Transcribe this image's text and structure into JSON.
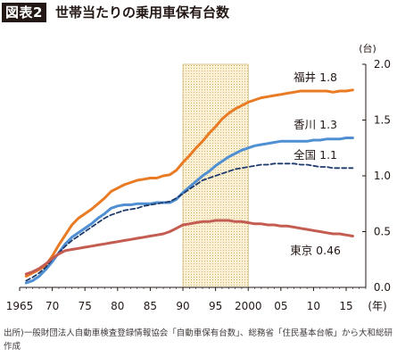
{
  "figure": {
    "badge": "図表2",
    "title": "世帯当たりの乗用車保有台数"
  },
  "source_note": "出所)一般財団法人自動車検査登録情報協会「自動車保有台数」、総務省「住民基本台帳」から大和総研作成",
  "chart_data": {
    "type": "line",
    "title": "世帯当たりの乗用車保有台数",
    "xlabel": "(年)",
    "ylabel": "(台)",
    "xlim": [
      1965,
      2018
    ],
    "ylim": [
      0,
      2.0
    ],
    "y_ticks": [
      0.0,
      0.5,
      1.0,
      1.5,
      2.0
    ],
    "y_tick_labels": [
      "0.0",
      "0.5",
      "1.0",
      "1.5",
      "2.0"
    ],
    "x_ticks": [
      1965,
      1970,
      1975,
      1980,
      1985,
      1990,
      1995,
      2000,
      2005,
      2010,
      2015
    ],
    "x_tick_labels": [
      "1965",
      "70",
      "75",
      "80",
      "85",
      "90",
      "95",
      "2000",
      "05",
      "10",
      "15"
    ],
    "grid": false,
    "shaded_range": [
      1990,
      2000
    ],
    "shaded_color": "#fbf0d4",
    "series": [
      {
        "name": "福井",
        "label": "福井 1.8",
        "color": "#e97b24",
        "style": "solid",
        "x": [
          1966,
          1967,
          1968,
          1969,
          1970,
          1971,
          1972,
          1973,
          1974,
          1975,
          1976,
          1977,
          1978,
          1979,
          1980,
          1981,
          1982,
          1983,
          1984,
          1985,
          1986,
          1987,
          1988,
          1989,
          1990,
          1991,
          1992,
          1993,
          1994,
          1995,
          1996,
          1997,
          1998,
          1999,
          2000,
          2001,
          2002,
          2003,
          2004,
          2005,
          2006,
          2007,
          2008,
          2009,
          2010,
          2011,
          2012,
          2013,
          2014,
          2015,
          2016
        ],
        "values": [
          0.1,
          0.13,
          0.16,
          0.2,
          0.28,
          0.38,
          0.47,
          0.56,
          0.62,
          0.66,
          0.7,
          0.75,
          0.8,
          0.86,
          0.89,
          0.92,
          0.94,
          0.96,
          0.97,
          0.98,
          0.98,
          1.0,
          1.01,
          1.05,
          1.12,
          1.18,
          1.25,
          1.31,
          1.38,
          1.44,
          1.51,
          1.56,
          1.6,
          1.63,
          1.66,
          1.68,
          1.7,
          1.71,
          1.72,
          1.73,
          1.74,
          1.75,
          1.76,
          1.76,
          1.76,
          1.76,
          1.76,
          1.75,
          1.76,
          1.76,
          1.77
        ]
      },
      {
        "name": "香川",
        "label": "香川 1.3",
        "color": "#4f8fd2",
        "style": "solid",
        "x": [
          1966,
          1967,
          1968,
          1969,
          1970,
          1971,
          1972,
          1973,
          1974,
          1975,
          1976,
          1977,
          1978,
          1979,
          1980,
          1981,
          1982,
          1983,
          1984,
          1985,
          1986,
          1987,
          1988,
          1989,
          1990,
          1991,
          1992,
          1993,
          1994,
          1995,
          1996,
          1997,
          1998,
          1999,
          2000,
          2001,
          2002,
          2003,
          2004,
          2005,
          2006,
          2007,
          2008,
          2009,
          2010,
          2011,
          2012,
          2013,
          2014,
          2015,
          2016
        ],
        "values": [
          0.04,
          0.06,
          0.1,
          0.16,
          0.23,
          0.31,
          0.39,
          0.45,
          0.49,
          0.53,
          0.57,
          0.62,
          0.66,
          0.71,
          0.73,
          0.74,
          0.74,
          0.75,
          0.75,
          0.75,
          0.76,
          0.76,
          0.76,
          0.79,
          0.85,
          0.9,
          0.95,
          1.0,
          1.04,
          1.09,
          1.13,
          1.17,
          1.2,
          1.23,
          1.25,
          1.27,
          1.28,
          1.29,
          1.3,
          1.31,
          1.31,
          1.31,
          1.31,
          1.31,
          1.32,
          1.32,
          1.33,
          1.33,
          1.33,
          1.34,
          1.34
        ]
      },
      {
        "name": "全国",
        "label": "全国 1.1",
        "color": "#1e3a6b",
        "style": "dashed",
        "x": [
          1966,
          1967,
          1968,
          1969,
          1970,
          1971,
          1972,
          1973,
          1974,
          1975,
          1976,
          1977,
          1978,
          1979,
          1980,
          1981,
          1982,
          1983,
          1984,
          1985,
          1986,
          1987,
          1988,
          1989,
          1990,
          1991,
          1992,
          1993,
          1994,
          1995,
          1996,
          1997,
          1998,
          1999,
          2000,
          2001,
          2002,
          2003,
          2004,
          2005,
          2006,
          2007,
          2008,
          2009,
          2010,
          2011,
          2012,
          2013,
          2014,
          2015,
          2016
        ],
        "values": [
          0.06,
          0.09,
          0.13,
          0.18,
          0.25,
          0.31,
          0.37,
          0.42,
          0.46,
          0.5,
          0.54,
          0.58,
          0.62,
          0.65,
          0.67,
          0.69,
          0.7,
          0.71,
          0.73,
          0.74,
          0.75,
          0.76,
          0.77,
          0.8,
          0.84,
          0.88,
          0.92,
          0.96,
          0.98,
          1.0,
          1.02,
          1.04,
          1.06,
          1.07,
          1.08,
          1.09,
          1.1,
          1.1,
          1.11,
          1.11,
          1.11,
          1.11,
          1.1,
          1.1,
          1.09,
          1.08,
          1.08,
          1.07,
          1.07,
          1.07,
          1.07
        ]
      },
      {
        "name": "東京",
        "label": "東京 0.46",
        "color": "#c45c52",
        "style": "solid",
        "x": [
          1966,
          1967,
          1968,
          1969,
          1970,
          1971,
          1972,
          1973,
          1974,
          1975,
          1976,
          1977,
          1978,
          1979,
          1980,
          1981,
          1982,
          1983,
          1984,
          1985,
          1986,
          1987,
          1988,
          1989,
          1990,
          1991,
          1992,
          1993,
          1994,
          1995,
          1996,
          1997,
          1998,
          1999,
          2000,
          2001,
          2002,
          2003,
          2004,
          2005,
          2006,
          2007,
          2008,
          2009,
          2010,
          2011,
          2012,
          2013,
          2014,
          2015,
          2016
        ],
        "values": [
          0.12,
          0.14,
          0.17,
          0.21,
          0.26,
          0.3,
          0.33,
          0.34,
          0.35,
          0.36,
          0.37,
          0.38,
          0.39,
          0.4,
          0.41,
          0.42,
          0.43,
          0.44,
          0.45,
          0.46,
          0.47,
          0.48,
          0.5,
          0.53,
          0.56,
          0.57,
          0.58,
          0.59,
          0.59,
          0.6,
          0.6,
          0.6,
          0.59,
          0.59,
          0.58,
          0.57,
          0.57,
          0.56,
          0.56,
          0.55,
          0.55,
          0.54,
          0.53,
          0.52,
          0.51,
          0.5,
          0.49,
          0.48,
          0.48,
          0.47,
          0.46
        ]
      }
    ]
  }
}
